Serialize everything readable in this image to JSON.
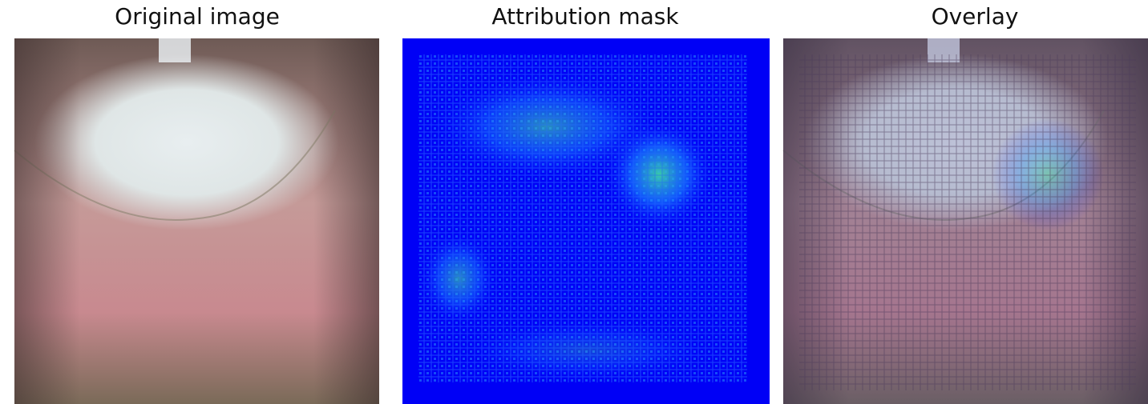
{
  "panels": [
    {
      "title": "Original image"
    },
    {
      "title": "Attribution mask"
    },
    {
      "title": "Overlay"
    }
  ]
}
